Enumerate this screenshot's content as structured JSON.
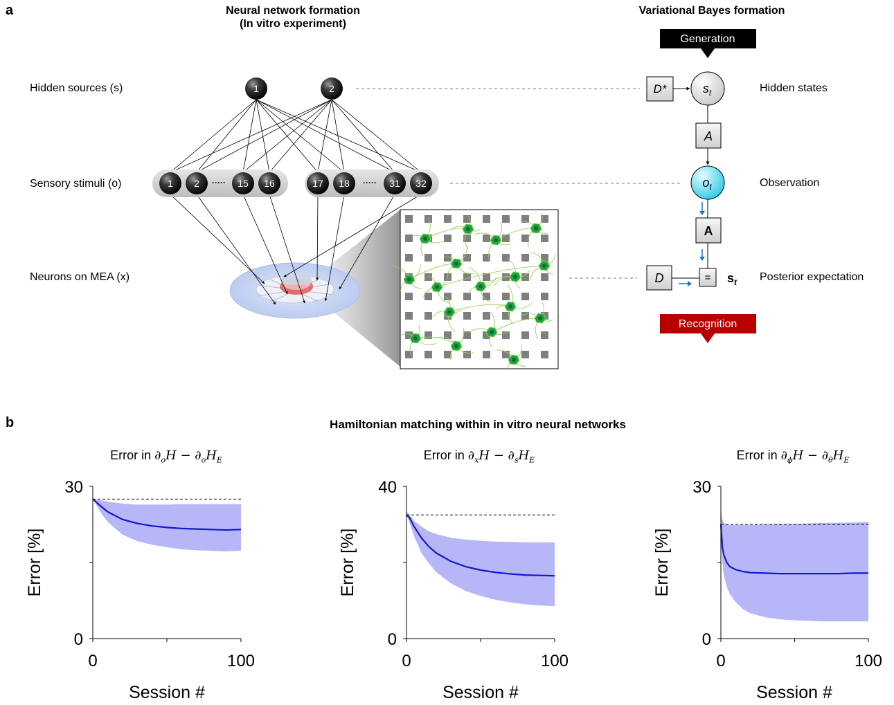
{
  "panel_a": {
    "letter": "a",
    "left_title_line1": "Neural network formation",
    "left_title_line2": "(In vitro experiment)",
    "right_title": "Variational Bayes formation",
    "row_labels": {
      "hidden_sources": "Hidden sources (s)",
      "sensory_stimuli": "Sensory stimuli (o)",
      "neurons_on_mea": "Neurons on MEA (x)"
    },
    "source_nodes": [
      "1",
      "2"
    ],
    "stimulus_nodes_left": [
      "1",
      "2",
      "15",
      "16"
    ],
    "stimulus_nodes_right": [
      "17",
      "18",
      "31",
      "32"
    ],
    "ellipsis": "·····",
    "generation_label": "Generation",
    "recognition_label": "Recognition",
    "right_labels": {
      "hidden_states": "Hidden states",
      "observation": "Observation",
      "posterior": "Posterior expectation"
    },
    "vb_symbols": {
      "d_star": "D*",
      "s_t": "st",
      "a_italic": "A",
      "o_t": "ot",
      "a_bold": "A",
      "d": "D",
      "equals": "=",
      "s_t_bold": "st"
    },
    "colors": {
      "generation_box": "#000000",
      "recognition_box": "#c00000",
      "observation_node": "#44d8ee",
      "update_arrow": "#1a73c8",
      "neuron": "#1ea34a",
      "electrode": "#7f7f7f"
    }
  },
  "panel_b": {
    "letter": "b",
    "title": "Hamiltonian matching within in vitro neural networks"
  },
  "chart_data": [
    {
      "type": "line",
      "title": "Error in ∂oH − ∂oHE",
      "xlabel": "Session #",
      "ylabel": "Error [%]",
      "xlim": [
        0,
        100
      ],
      "ylim": [
        0,
        30
      ],
      "xticks": [
        "0",
        "100"
      ],
      "yticks": [
        "0",
        "30"
      ],
      "x": [
        0,
        5,
        10,
        20,
        30,
        40,
        50,
        60,
        70,
        80,
        90,
        100
      ],
      "mean": [
        27.5,
        26.2,
        25.0,
        23.5,
        22.7,
        22.2,
        21.9,
        21.7,
        21.6,
        21.5,
        21.4,
        21.5
      ],
      "lower": [
        27.5,
        25.0,
        23.0,
        20.5,
        19.2,
        18.5,
        18.0,
        17.6,
        17.4,
        17.3,
        17.2,
        17.3
      ],
      "upper": [
        27.5,
        27.3,
        27.0,
        26.6,
        26.4,
        26.4,
        26.4,
        26.5,
        26.5,
        26.5,
        26.5,
        26.5
      ],
      "reference": 27.5,
      "colors": {
        "line": "#1414d2",
        "band": "#b3b3f7",
        "reference": "#000000"
      }
    },
    {
      "type": "line",
      "title": "Error in ∂xH − ∂sHE",
      "xlabel": "Session #",
      "ylabel": "Error [%]",
      "xlim": [
        0,
        100
      ],
      "ylim": [
        0,
        40
      ],
      "xticks": [
        "0",
        "100"
      ],
      "yticks": [
        "0",
        "40"
      ],
      "x": [
        0,
        2,
        5,
        10,
        15,
        20,
        30,
        40,
        50,
        60,
        70,
        80,
        90,
        100
      ],
      "mean": [
        32.5,
        31.8,
        29.5,
        26.5,
        24.2,
        22.5,
        20.3,
        18.9,
        18.0,
        17.4,
        17.0,
        16.7,
        16.6,
        16.5
      ],
      "lower": [
        32.5,
        30.5,
        27.0,
        22.5,
        19.8,
        17.5,
        14.5,
        12.5,
        11.2,
        10.2,
        9.5,
        9.0,
        8.7,
        8.5
      ],
      "upper": [
        33.5,
        32.5,
        31.0,
        29.5,
        28.2,
        27.5,
        26.5,
        26.0,
        25.7,
        25.5,
        25.4,
        25.3,
        25.3,
        25.3
      ],
      "reference": 32.5,
      "colors": {
        "line": "#1414d2",
        "band": "#b3b3f7",
        "reference": "#000000"
      }
    },
    {
      "type": "line",
      "title": "Error in ∂ϕH − ∂θHE",
      "xlabel": "Session #",
      "ylabel": "Error [%]",
      "xlim": [
        0,
        100
      ],
      "ylim": [
        0,
        30
      ],
      "xticks": [
        "0",
        "100"
      ],
      "yticks": [
        "0",
        "30"
      ],
      "x": [
        0,
        1,
        2,
        4,
        6,
        10,
        15,
        20,
        30,
        40,
        50,
        60,
        70,
        80,
        90,
        100
      ],
      "mean": [
        22.5,
        18.0,
        16.5,
        15.0,
        14.2,
        13.6,
        13.2,
        13.0,
        12.9,
        12.8,
        12.8,
        12.8,
        12.8,
        12.8,
        12.9,
        12.9
      ],
      "lower": [
        22.5,
        15.0,
        12.5,
        10.2,
        8.8,
        7.2,
        5.8,
        5.0,
        4.2,
        3.8,
        3.6,
        3.5,
        3.4,
        3.4,
        3.4,
        3.4
      ],
      "upper": [
        25.5,
        23.5,
        22.8,
        22.5,
        22.4,
        22.4,
        22.4,
        22.4,
        22.5,
        22.6,
        22.6,
        22.7,
        22.8,
        22.8,
        22.9,
        23.0
      ],
      "reference": 22.5,
      "colors": {
        "line": "#1414d2",
        "band": "#b3b3f7",
        "reference": "#000000"
      }
    }
  ]
}
